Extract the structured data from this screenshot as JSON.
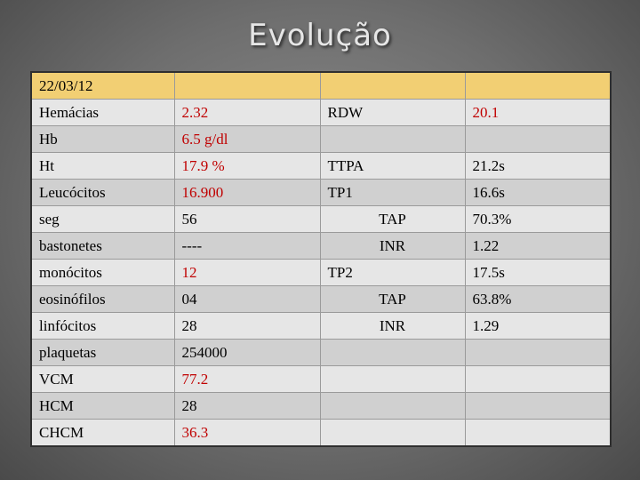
{
  "title": "Evolução",
  "table": {
    "header": [
      "22/03/12",
      "",
      "",
      ""
    ],
    "rows": [
      [
        "Hemácias",
        "2.32",
        "RDW",
        "20.1"
      ],
      [
        "Hb",
        "6.5  g/dl",
        "",
        ""
      ],
      [
        "Ht",
        "17.9  %",
        "TTPA",
        "21.2s"
      ],
      [
        "Leucócitos",
        "16.900",
        "TP1",
        "16.6s"
      ],
      [
        "seg",
        "56",
        "TAP",
        "70.3%"
      ],
      [
        "bastonetes",
        "----",
        "INR",
        "1.22"
      ],
      [
        "monócitos",
        "12",
        "TP2",
        "17.5s"
      ],
      [
        "eosinófilos",
        "04",
        "TAP",
        "63.8%"
      ],
      [
        "linfócitos",
        "28",
        "INR",
        "1.29"
      ],
      [
        "plaquetas",
        "254000",
        "",
        ""
      ],
      [
        "VCM",
        "77.2",
        "",
        ""
      ],
      [
        "HCM",
        "28",
        "",
        ""
      ],
      [
        "CHCM",
        "36.3",
        "",
        ""
      ]
    ]
  },
  "colors": {
    "header_fill": "#f2cf73",
    "row_light": "#e6e6e6",
    "row_dark": "#d0d0d0",
    "abnormal_value": "#c00000"
  }
}
